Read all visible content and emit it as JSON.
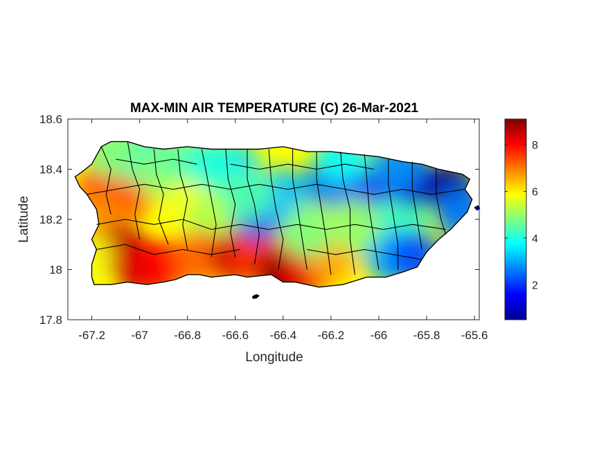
{
  "chart_data": {
    "type": "heatmap",
    "title": "MAX-MIN AIR TEMPERATURE (C) 26-Mar-2021",
    "xlabel": "Longitude",
    "ylabel": "Latitude",
    "xlim": [
      -67.3,
      -65.58
    ],
    "ylim": [
      17.8,
      18.6
    ],
    "x_ticks": [
      -67.2,
      -67,
      -66.8,
      -66.6,
      -66.4,
      -66.2,
      -66,
      -65.8,
      -65.6
    ],
    "x_tick_labels": [
      "-67.2",
      "-67",
      "-66.8",
      "-66.6",
      "-66.4",
      "-66.2",
      "-66",
      "-65.8",
      "-65.6"
    ],
    "y_ticks": [
      17.8,
      18,
      18.2,
      18.4,
      18.6
    ],
    "y_tick_labels": [
      "17.8",
      "18",
      "18.2",
      "18.4",
      "18.6"
    ],
    "colorbar": {
      "range": [
        0.5,
        9.1
      ],
      "ticks": [
        2,
        4,
        6,
        8
      ],
      "tick_labels": [
        "2",
        "4",
        "6",
        "8"
      ],
      "colormap": "jet"
    },
    "region": "Puerto Rico",
    "field_samples": [
      {
        "lon": -67.15,
        "lat": 18.33,
        "value": 7.6
      },
      {
        "lon": -67.05,
        "lat": 18.3,
        "value": 7.2
      },
      {
        "lon": -67.2,
        "lat": 18.2,
        "value": 6.8
      },
      {
        "lon": -67.08,
        "lat": 18.08,
        "value": 8.6
      },
      {
        "lon": -67.0,
        "lat": 18.0,
        "value": 8.4
      },
      {
        "lon": -66.9,
        "lat": 18.02,
        "value": 8.0
      },
      {
        "lon": -67.0,
        "lat": 18.45,
        "value": 4.2
      },
      {
        "lon": -66.9,
        "lat": 18.38,
        "value": 5.0
      },
      {
        "lon": -66.8,
        "lat": 18.25,
        "value": 5.8
      },
      {
        "lon": -66.7,
        "lat": 18.2,
        "value": 5.2
      },
      {
        "lon": -66.75,
        "lat": 18.05,
        "value": 7.2
      },
      {
        "lon": -66.6,
        "lat": 18.05,
        "value": 8.4
      },
      {
        "lon": -66.5,
        "lat": 18.05,
        "value": 7.6
      },
      {
        "lon": -66.4,
        "lat": 17.98,
        "value": 9.0
      },
      {
        "lon": -66.3,
        "lat": 18.0,
        "value": 8.2
      },
      {
        "lon": -66.2,
        "lat": 18.05,
        "value": 6.6
      },
      {
        "lon": -66.6,
        "lat": 18.4,
        "value": 3.4
      },
      {
        "lon": -66.5,
        "lat": 18.22,
        "value": 2.3
      },
      {
        "lon": -66.4,
        "lat": 18.3,
        "value": 3.2
      },
      {
        "lon": -66.2,
        "lat": 18.35,
        "value": 2.6
      },
      {
        "lon": -66.05,
        "lat": 18.3,
        "value": 2.0
      },
      {
        "lon": -66.0,
        "lat": 18.12,
        "value": 4.6
      },
      {
        "lon": -65.9,
        "lat": 18.2,
        "value": 4.2
      },
      {
        "lon": -65.85,
        "lat": 18.35,
        "value": 1.2
      },
      {
        "lon": -65.7,
        "lat": 18.32,
        "value": 0.8
      },
      {
        "lon": -65.65,
        "lat": 18.22,
        "value": 2.6
      },
      {
        "lon": -65.95,
        "lat": 18.05,
        "value": 3.0
      },
      {
        "lon": -65.85,
        "lat": 18.05,
        "value": 2.2
      },
      {
        "lon": -66.85,
        "lat": 18.45,
        "value": 4.6
      },
      {
        "lon": -66.7,
        "lat": 18.42,
        "value": 4.0
      },
      {
        "lon": -66.3,
        "lat": 18.15,
        "value": 4.8
      },
      {
        "lon": -66.1,
        "lat": 18.18,
        "value": 5.0
      },
      {
        "lon": -67.12,
        "lat": 18.47,
        "value": 4.8
      },
      {
        "lon": -67.22,
        "lat": 18.05,
        "value": 5.8
      },
      {
        "lon": -66.55,
        "lat": 18.3,
        "value": 4.4
      },
      {
        "lon": -66.15,
        "lat": 18.45,
        "value": 3.8
      },
      {
        "lon": -65.92,
        "lat": 18.42,
        "value": 2.8
      }
    ]
  }
}
